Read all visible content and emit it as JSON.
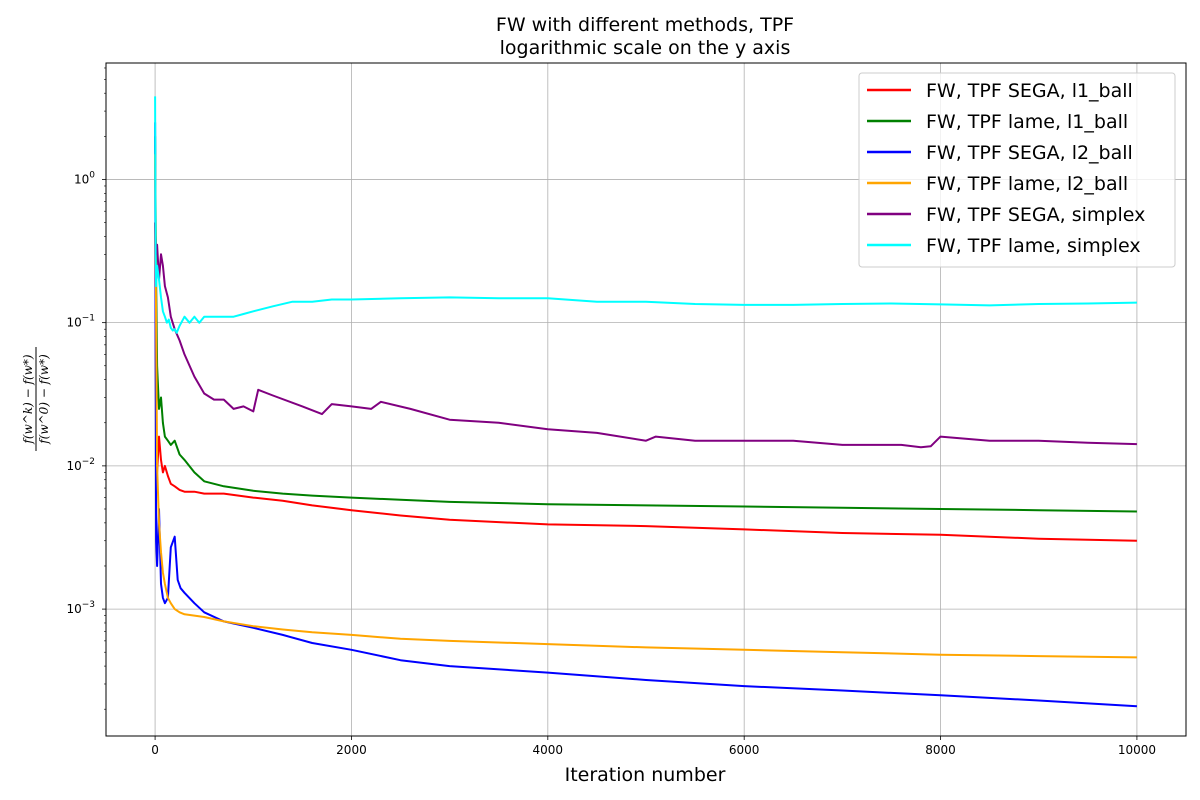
{
  "chart_data": {
    "type": "line",
    "title_lines": [
      "FW with different methods, TPF",
      "logarithmic scale on the y axis"
    ],
    "xlabel": "Iteration number",
    "ylabel_numerator": "f(w^k) − f(w*)",
    "ylabel_denominator": "f(w^0) − f(w*)",
    "yscale": "log",
    "xlim": [
      -500,
      10500
    ],
    "ylim": [
      0.00013,
      6.5
    ],
    "x_ticks": [
      {
        "value": 0,
        "label": "0"
      },
      {
        "value": 2000,
        "label": "2000"
      },
      {
        "value": 4000,
        "label": "4000"
      },
      {
        "value": 6000,
        "label": "6000"
      },
      {
        "value": 8000,
        "label": "8000"
      },
      {
        "value": 10000,
        "label": "10000"
      }
    ],
    "y_ticks": [
      {
        "value": 0.001,
        "base": "10",
        "exp": "−3"
      },
      {
        "value": 0.01,
        "base": "10",
        "exp": "−2"
      },
      {
        "value": 0.1,
        "base": "10",
        "exp": "−1"
      },
      {
        "value": 1,
        "base": "10",
        "exp": "0"
      }
    ],
    "grid": true,
    "legend_position": "top-right",
    "series": [
      {
        "name": "FW, TPF SEGA, l1_ball",
        "color": "#ff0000",
        "x": [
          0,
          10,
          20,
          40,
          60,
          80,
          100,
          130,
          160,
          200,
          250,
          300,
          400,
          500,
          700,
          1000,
          1300,
          1600,
          2000,
          2500,
          3000,
          4000,
          5000,
          6000,
          7000,
          8000,
          9000,
          10000
        ],
        "y": [
          0.5,
          0.02,
          0.009,
          0.016,
          0.011,
          0.009,
          0.01,
          0.0085,
          0.0075,
          0.0072,
          0.0068,
          0.0066,
          0.0066,
          0.0064,
          0.0064,
          0.006,
          0.0057,
          0.0053,
          0.0049,
          0.0045,
          0.0042,
          0.0039,
          0.0038,
          0.0036,
          0.0034,
          0.0033,
          0.0031,
          0.003
        ]
      },
      {
        "name": "FW, TPF lame, l1_ball",
        "color": "#008000",
        "x": [
          0,
          10,
          20,
          40,
          60,
          80,
          100,
          130,
          160,
          200,
          250,
          300,
          400,
          500,
          700,
          1000,
          1300,
          1600,
          2000,
          2500,
          3000,
          4000,
          5000,
          6000,
          7000,
          8000,
          9000,
          10000
        ],
        "y": [
          2.0,
          0.2,
          0.05,
          0.025,
          0.03,
          0.02,
          0.016,
          0.015,
          0.014,
          0.015,
          0.012,
          0.011,
          0.009,
          0.0078,
          0.0072,
          0.0067,
          0.0064,
          0.0062,
          0.006,
          0.0058,
          0.0056,
          0.0054,
          0.0053,
          0.0052,
          0.0051,
          0.005,
          0.0049,
          0.0048
        ]
      },
      {
        "name": "FW, TPF SEGA, l2_ball",
        "color": "#0000ff",
        "x": [
          0,
          10,
          20,
          40,
          60,
          80,
          100,
          130,
          160,
          200,
          230,
          260,
          300,
          400,
          500,
          700,
          1000,
          1300,
          1600,
          2000,
          2500,
          3000,
          4000,
          5000,
          6000,
          7000,
          8000,
          9000,
          10000
        ],
        "y": [
          2.5,
          0.003,
          0.002,
          0.005,
          0.0015,
          0.0012,
          0.0011,
          0.0012,
          0.0027,
          0.0032,
          0.0016,
          0.0014,
          0.0013,
          0.0011,
          0.00095,
          0.00082,
          0.00074,
          0.00066,
          0.00058,
          0.00052,
          0.00044,
          0.0004,
          0.00036,
          0.00032,
          0.00029,
          0.00027,
          0.00025,
          0.00023,
          0.00021
        ]
      },
      {
        "name": "FW, TPF lame, l2_ball",
        "color": "#ffa500",
        "x": [
          0,
          10,
          20,
          40,
          60,
          80,
          100,
          130,
          160,
          200,
          250,
          300,
          400,
          500,
          700,
          1000,
          1300,
          1600,
          2000,
          2500,
          3000,
          4000,
          5000,
          6000,
          7000,
          8000,
          9000,
          10000
        ],
        "y": [
          1.5,
          0.1,
          0.01,
          0.004,
          0.0025,
          0.0018,
          0.0015,
          0.0012,
          0.0011,
          0.001,
          0.00095,
          0.00092,
          0.0009,
          0.00088,
          0.00082,
          0.00076,
          0.00072,
          0.00069,
          0.00066,
          0.00062,
          0.0006,
          0.00057,
          0.00054,
          0.00052,
          0.0005,
          0.00048,
          0.00047,
          0.00046
        ]
      },
      {
        "name": "FW, TPF SEGA, simplex",
        "color": "#800080",
        "x": [
          0,
          10,
          20,
          40,
          60,
          80,
          100,
          130,
          160,
          200,
          250,
          300,
          400,
          500,
          600,
          700,
          800,
          900,
          1000,
          1050,
          1200,
          1500,
          1700,
          1800,
          2000,
          2200,
          2300,
          2600,
          3000,
          3500,
          4000,
          4500,
          5000,
          5100,
          5500,
          6000,
          6500,
          7000,
          7500,
          7600,
          7800,
          7900,
          8000,
          8500,
          9000,
          9500,
          10000
        ],
        "y": [
          0.5,
          0.3,
          0.35,
          0.2,
          0.3,
          0.25,
          0.18,
          0.15,
          0.11,
          0.09,
          0.075,
          0.06,
          0.042,
          0.032,
          0.029,
          0.029,
          0.025,
          0.026,
          0.024,
          0.034,
          0.031,
          0.026,
          0.023,
          0.027,
          0.026,
          0.025,
          0.028,
          0.025,
          0.021,
          0.02,
          0.018,
          0.017,
          0.015,
          0.016,
          0.015,
          0.015,
          0.015,
          0.014,
          0.014,
          0.014,
          0.0135,
          0.0137,
          0.016,
          0.015,
          0.015,
          0.0145,
          0.0142
        ]
      },
      {
        "name": "FW, TPF lame, simplex",
        "color": "#00ffff",
        "x": [
          0,
          5,
          10,
          20,
          40,
          60,
          80,
          100,
          120,
          140,
          160,
          180,
          200,
          220,
          250,
          300,
          350,
          400,
          450,
          500,
          600,
          700,
          800,
          900,
          1000,
          1200,
          1400,
          1600,
          1800,
          2000,
          2500,
          3000,
          3500,
          4000,
          4500,
          5000,
          5500,
          6000,
          6500,
          7000,
          7500,
          8000,
          8500,
          9000,
          9500,
          10000
        ],
        "y": [
          3.8,
          0.3,
          0.18,
          0.25,
          0.2,
          0.15,
          0.12,
          0.11,
          0.1,
          0.105,
          0.092,
          0.088,
          0.09,
          0.085,
          0.095,
          0.11,
          0.1,
          0.11,
          0.1,
          0.11,
          0.11,
          0.11,
          0.11,
          0.115,
          0.12,
          0.13,
          0.14,
          0.14,
          0.145,
          0.145,
          0.148,
          0.15,
          0.148,
          0.148,
          0.14,
          0.14,
          0.135,
          0.133,
          0.133,
          0.135,
          0.136,
          0.134,
          0.132,
          0.135,
          0.136,
          0.138
        ]
      }
    ]
  }
}
